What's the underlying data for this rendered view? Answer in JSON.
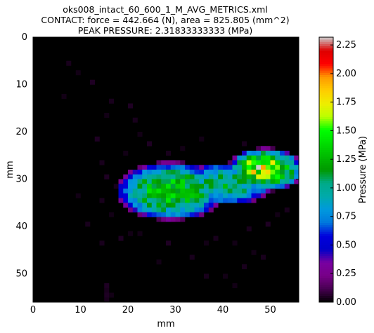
{
  "chart_data": {
    "type": "heatmap",
    "title_lines": [
      "oks008_intact_60_600_1_M_AVG_METRICS.xml",
      "CONTACT: force = 442.664 (N), area = 825.805 (mm^2)",
      "PEAK PRESSURE: 2.31833333333 (MPa)"
    ],
    "xlabel": "mm",
    "ylabel": "mm",
    "xlim": [
      0,
      56
    ],
    "ylim": [
      56,
      0
    ],
    "x_ticks": [
      0,
      10,
      20,
      30,
      40,
      50
    ],
    "x_tick_labels": [
      "0",
      "10",
      "20",
      "30",
      "40",
      "50"
    ],
    "y_ticks": [
      0,
      10,
      20,
      30,
      40,
      50
    ],
    "y_tick_labels": [
      "0",
      "10",
      "20",
      "30",
      "40",
      "50"
    ],
    "colorbar": {
      "label": "Pressure (MPa)",
      "range": [
        0,
        2.31833333333
      ],
      "ticks": [
        0,
        0.25,
        0.5,
        0.75,
        1.0,
        1.25,
        1.5,
        1.75,
        2.0,
        2.25
      ],
      "tick_labels": [
        "0.00",
        "0.25",
        "0.50",
        "0.75",
        "1.00",
        "1.25",
        "1.50",
        "1.75",
        "2.00",
        "2.25"
      ],
      "colormap": "nipy_spectral"
    },
    "grid_size": [
      56,
      56
    ],
    "field": {
      "blobs": [
        {
          "cx": 29.0,
          "cy": 32.5,
          "rx": 11.5,
          "ry": 6.2,
          "peak": 1.32
        },
        {
          "cx": 40.5,
          "cy": 31.0,
          "rx": 10.5,
          "ry": 4.4,
          "peak": 1.12
        },
        {
          "cx": 49.0,
          "cy": 28.0,
          "rx": 8.0,
          "ry": 4.6,
          "peak": 1.55
        },
        {
          "cx": 47.0,
          "cy": 27.0,
          "rx": 2.0,
          "ry": 1.5,
          "peak": 0.75
        }
      ],
      "peak_cell": {
        "x": 47,
        "y": 27,
        "value": 2.31833333333
      },
      "sparse_low_cells": [
        [
          7,
          5,
          0.04
        ],
        [
          9,
          7,
          0.03
        ],
        [
          12,
          9,
          0.05
        ],
        [
          6,
          12,
          0.03
        ],
        [
          16,
          13,
          0.04
        ],
        [
          20,
          14,
          0.05
        ],
        [
          15,
          16,
          0.03
        ],
        [
          21,
          17,
          0.04
        ],
        [
          22,
          20,
          0.03
        ],
        [
          13,
          21,
          0.05
        ],
        [
          35,
          21,
          0.03
        ],
        [
          44,
          22,
          0.04
        ],
        [
          24,
          22,
          0.05
        ],
        [
          19,
          24,
          0.03
        ],
        [
          28,
          24,
          0.04
        ],
        [
          31,
          23,
          0.03
        ],
        [
          14,
          26,
          0.04
        ],
        [
          15,
          29,
          0.05
        ],
        [
          17,
          31,
          0.04
        ],
        [
          9,
          33,
          0.03
        ],
        [
          14,
          34,
          0.04
        ],
        [
          16,
          37,
          0.03
        ],
        [
          11,
          39,
          0.04
        ],
        [
          20,
          41,
          0.03
        ],
        [
          18,
          42,
          0.05
        ],
        [
          14,
          43,
          0.04
        ],
        [
          22,
          41,
          0.03
        ],
        [
          28,
          43,
          0.05
        ],
        [
          36,
          43,
          0.03
        ],
        [
          38,
          42,
          0.04
        ],
        [
          42,
          43,
          0.03
        ],
        [
          45,
          40,
          0.04
        ],
        [
          49,
          39,
          0.05
        ],
        [
          51,
          37,
          0.03
        ],
        [
          53,
          36,
          0.04
        ],
        [
          46,
          45,
          0.03
        ],
        [
          44,
          48,
          0.04
        ],
        [
          40,
          50,
          0.03
        ],
        [
          15,
          52,
          0.05
        ],
        [
          15,
          53,
          0.04
        ],
        [
          15,
          54,
          0.05
        ],
        [
          15,
          55,
          0.04
        ],
        [
          16,
          54,
          0.03
        ],
        [
          36,
          50,
          0.04
        ],
        [
          42,
          52,
          0.03
        ],
        [
          48,
          46,
          0.04
        ],
        [
          26,
          47,
          0.03
        ],
        [
          33,
          46,
          0.04
        ]
      ]
    }
  }
}
